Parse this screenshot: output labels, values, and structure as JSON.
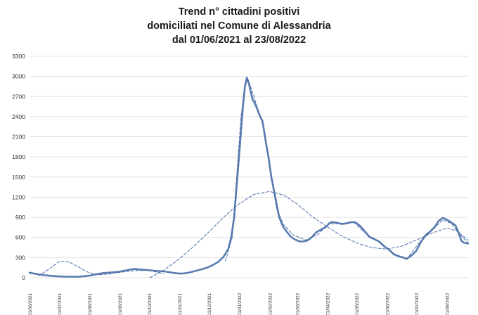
{
  "chart_data": {
    "type": "line",
    "title_lines": [
      "Trend n° cittadini positivi",
      "domiciliati nel Comune di Alessandria",
      "dal 01/06/2021 al 23/08/2022"
    ],
    "x_start": "2021-06-01",
    "x_end": "2022-08-23",
    "xlabel": "",
    "ylabel": "",
    "ylim": [
      0,
      3300
    ],
    "y_ticks": [
      "0",
      "300",
      "600",
      "900",
      "1200",
      "1500",
      "1800",
      "2100",
      "2400",
      "2700",
      "3000",
      "3300"
    ],
    "x_ticks": [
      {
        "date": "2021-06-01",
        "label": "01/06/2021"
      },
      {
        "date": "2021-07-01",
        "label": "01/07/2021"
      },
      {
        "date": "2021-08-01",
        "label": "01/08/2021"
      },
      {
        "date": "2021-09-01",
        "label": "01/09/2021"
      },
      {
        "date": "2021-10-01",
        "label": "01/10/2021"
      },
      {
        "date": "2021-11-01",
        "label": "01/11/2021"
      },
      {
        "date": "2021-12-01",
        "label": "01/12/2021"
      },
      {
        "date": "2022-01-01",
        "label": "01/01/2022"
      },
      {
        "date": "2022-02-01",
        "label": "01/02/2022"
      },
      {
        "date": "2022-03-01",
        "label": "01/03/2022"
      },
      {
        "date": "2022-04-01",
        "label": "01/04/2022"
      },
      {
        "date": "2022-05-01",
        "label": "01/05/2022"
      },
      {
        "date": "2022-06-01",
        "label": "01/06/2022"
      },
      {
        "date": "2022-07-01",
        "label": "01/07/2022"
      },
      {
        "date": "2022-08-01",
        "label": "01/08/2022"
      }
    ],
    "grid": true,
    "legend": "none",
    "colors": {
      "actual": "#5b7db1",
      "trend": "#4a6fa8"
    },
    "series": [
      {
        "style": "solid",
        "points": [
          [
            "2021-06-01",
            75
          ],
          [
            "2021-06-06",
            62
          ],
          [
            "2021-06-11",
            48
          ],
          [
            "2021-06-16",
            38
          ],
          [
            "2021-06-21",
            30
          ],
          [
            "2021-06-26",
            24
          ],
          [
            "2021-07-01",
            20
          ],
          [
            "2021-07-06",
            18
          ],
          [
            "2021-07-11",
            16
          ],
          [
            "2021-07-16",
            15
          ],
          [
            "2021-07-21",
            17
          ],
          [
            "2021-07-26",
            22
          ],
          [
            "2021-08-01",
            30
          ],
          [
            "2021-08-06",
            45
          ],
          [
            "2021-08-11",
            60
          ],
          [
            "2021-08-16",
            70
          ],
          [
            "2021-08-21",
            75
          ],
          [
            "2021-08-26",
            82
          ],
          [
            "2021-09-01",
            90
          ],
          [
            "2021-09-06",
            105
          ],
          [
            "2021-09-11",
            120
          ],
          [
            "2021-09-16",
            130
          ],
          [
            "2021-09-21",
            125
          ],
          [
            "2021-09-26",
            118
          ],
          [
            "2021-10-01",
            112
          ],
          [
            "2021-10-06",
            105
          ],
          [
            "2021-10-11",
            100
          ],
          [
            "2021-10-16",
            95
          ],
          [
            "2021-10-21",
            85
          ],
          [
            "2021-10-26",
            72
          ],
          [
            "2021-11-01",
            62
          ],
          [
            "2021-11-06",
            65
          ],
          [
            "2021-11-11",
            78
          ],
          [
            "2021-11-16",
            95
          ],
          [
            "2021-11-21",
            115
          ],
          [
            "2021-11-26",
            135
          ],
          [
            "2021-12-01",
            160
          ],
          [
            "2021-12-06",
            195
          ],
          [
            "2021-12-11",
            240
          ],
          [
            "2021-12-16",
            310
          ],
          [
            "2021-12-21",
            430
          ],
          [
            "2021-12-24",
            600
          ],
          [
            "2021-12-27",
            900
          ],
          [
            "2021-12-30",
            1450
          ],
          [
            "2022-01-02",
            2000
          ],
          [
            "2022-01-05",
            2550
          ],
          [
            "2022-01-07",
            2850
          ],
          [
            "2022-01-09",
            2980
          ],
          [
            "2022-01-11",
            2900
          ],
          [
            "2022-01-13",
            2760
          ],
          [
            "2022-01-15",
            2650
          ],
          [
            "2022-01-17",
            2600
          ],
          [
            "2022-01-20",
            2500
          ],
          [
            "2022-01-22",
            2420
          ],
          [
            "2022-01-25",
            2330
          ],
          [
            "2022-01-28",
            2050
          ],
          [
            "2022-01-31",
            1800
          ],
          [
            "2022-02-03",
            1500
          ],
          [
            "2022-02-07",
            1200
          ],
          [
            "2022-02-11",
            900
          ],
          [
            "2022-02-15",
            760
          ],
          [
            "2022-02-19",
            680
          ],
          [
            "2022-02-23",
            610
          ],
          [
            "2022-02-27",
            570
          ],
          [
            "2022-03-03",
            545
          ],
          [
            "2022-03-07",
            540
          ],
          [
            "2022-03-12",
            555
          ],
          [
            "2022-03-16",
            600
          ],
          [
            "2022-03-21",
            680
          ],
          [
            "2022-03-26",
            720
          ],
          [
            "2022-03-31",
            760
          ],
          [
            "2022-04-03",
            810
          ],
          [
            "2022-04-06",
            830
          ],
          [
            "2022-04-11",
            820
          ],
          [
            "2022-04-16",
            800
          ],
          [
            "2022-04-21",
            810
          ],
          [
            "2022-04-26",
            830
          ],
          [
            "2022-04-30",
            825
          ],
          [
            "2022-05-04",
            780
          ],
          [
            "2022-05-09",
            700
          ],
          [
            "2022-05-14",
            610
          ],
          [
            "2022-05-19",
            575
          ],
          [
            "2022-05-24",
            540
          ],
          [
            "2022-05-29",
            470
          ],
          [
            "2022-06-03",
            420
          ],
          [
            "2022-06-08",
            350
          ],
          [
            "2022-06-13",
            320
          ],
          [
            "2022-06-18",
            300
          ],
          [
            "2022-06-21",
            280
          ],
          [
            "2022-06-26",
            330
          ],
          [
            "2022-07-01",
            400
          ],
          [
            "2022-07-06",
            540
          ],
          [
            "2022-07-11",
            640
          ],
          [
            "2022-07-16",
            700
          ],
          [
            "2022-07-20",
            760
          ],
          [
            "2022-07-24",
            850
          ],
          [
            "2022-07-28",
            890
          ],
          [
            "2022-08-02",
            860
          ],
          [
            "2022-08-06",
            820
          ],
          [
            "2022-08-10",
            780
          ],
          [
            "2022-08-13",
            680
          ],
          [
            "2022-08-16",
            550
          ],
          [
            "2022-08-19",
            520
          ],
          [
            "2022-08-23",
            510
          ]
        ]
      },
      {
        "style": "dashed",
        "points": [
          [
            "2021-06-01",
            80
          ],
          [
            "2021-06-11",
            35
          ],
          [
            "2021-06-21",
            130
          ],
          [
            "2021-07-01",
            240
          ],
          [
            "2021-07-11",
            240
          ],
          [
            "2021-07-21",
            160
          ],
          [
            "2021-07-31",
            80
          ],
          [
            "2021-08-10",
            45
          ],
          [
            "2021-08-20",
            55
          ],
          [
            "2021-09-01",
            80
          ],
          [
            "2021-09-16",
            105
          ],
          [
            "2021-10-01",
            110
          ],
          [
            "2021-10-16",
            60
          ]
        ]
      },
      {
        "style": "dashed",
        "points": [
          [
            "2021-10-02",
            0
          ],
          [
            "2021-10-16",
            110
          ],
          [
            "2021-11-01",
            280
          ],
          [
            "2021-11-16",
            470
          ],
          [
            "2021-12-01",
            680
          ],
          [
            "2021-12-16",
            900
          ],
          [
            "2022-01-01",
            1100
          ],
          [
            "2022-01-16",
            1240
          ],
          [
            "2022-02-01",
            1285
          ],
          [
            "2022-02-16",
            1230
          ],
          [
            "2022-03-01",
            1100
          ],
          [
            "2022-03-16",
            920
          ],
          [
            "2022-04-01",
            760
          ],
          [
            "2022-04-16",
            620
          ],
          [
            "2022-05-01",
            520
          ],
          [
            "2022-05-16",
            450
          ],
          [
            "2022-06-01",
            425
          ],
          [
            "2022-06-16",
            470
          ],
          [
            "2022-07-01",
            560
          ],
          [
            "2022-07-16",
            660
          ],
          [
            "2022-08-01",
            740
          ],
          [
            "2022-08-11",
            700
          ],
          [
            "2022-08-23",
            560
          ]
        ]
      },
      {
        "style": "dashed",
        "points": [
          [
            "2021-12-18",
            250
          ],
          [
            "2021-12-25",
            600
          ],
          [
            "2021-12-30",
            1600
          ],
          [
            "2022-01-03",
            2400
          ],
          [
            "2022-01-07",
            2850
          ],
          [
            "2022-01-10",
            2960
          ],
          [
            "2022-01-14",
            2800
          ],
          [
            "2022-01-20",
            2520
          ],
          [
            "2022-01-26",
            2250
          ],
          [
            "2022-02-01",
            1700
          ],
          [
            "2022-02-08",
            1050
          ],
          [
            "2022-02-15",
            800
          ],
          [
            "2022-02-25",
            640
          ],
          [
            "2022-03-10",
            560
          ],
          [
            "2022-03-22",
            640
          ],
          [
            "2022-04-03",
            800
          ],
          [
            "2022-04-15",
            810
          ],
          [
            "2022-04-28",
            830
          ],
          [
            "2022-05-12",
            640
          ],
          [
            "2022-05-26",
            520
          ],
          [
            "2022-06-10",
            340
          ],
          [
            "2022-06-22",
            290
          ],
          [
            "2022-07-05",
            540
          ],
          [
            "2022-07-18",
            720
          ],
          [
            "2022-07-28",
            860
          ],
          [
            "2022-08-06",
            810
          ],
          [
            "2022-08-14",
            650
          ],
          [
            "2022-08-23",
            520
          ]
        ]
      }
    ]
  }
}
